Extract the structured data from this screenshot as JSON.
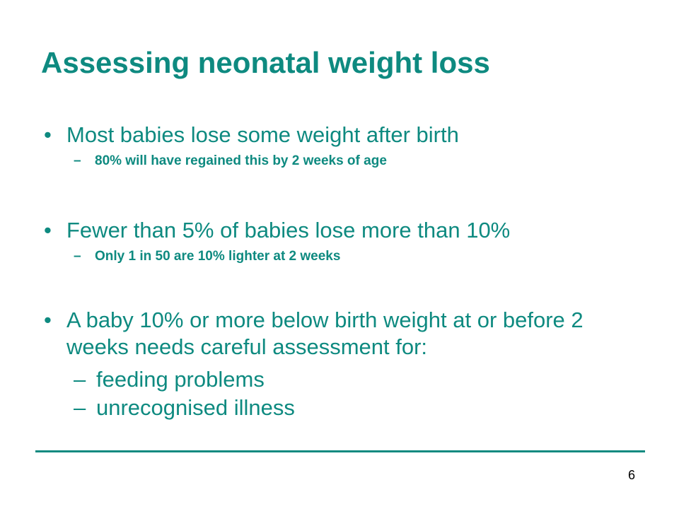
{
  "slide": {
    "title": "Assessing neonatal weight loss",
    "page_number": "6",
    "bullet_glyph": "•",
    "dash_glyph": "–",
    "bullets": [
      {
        "text": "Most babies lose some weight after birth",
        "subitems": [
          "80% will have regained this by 2 weeks of age"
        ]
      },
      {
        "text": "Fewer than 5% of babies lose more than 10%",
        "subitems": [
          "Only 1 in 50 are 10% lighter at 2 weeks"
        ]
      },
      {
        "text": "A baby 10% or more below birth weight at or before 2 weeks needs careful assessment for:",
        "subitems": [
          "feeding problems",
          "unrecognised illness"
        ]
      }
    ]
  },
  "colors": {
    "accent": "#0E8A80",
    "page_number": "#000000",
    "background": "#FFFFFF"
  }
}
